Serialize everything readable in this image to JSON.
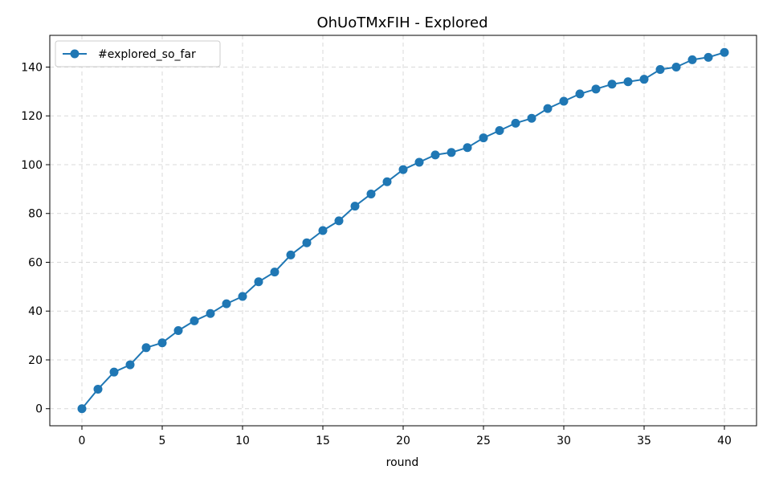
{
  "chart_data": {
    "type": "line",
    "title": "OhUoTMxFIH - Explored",
    "xlabel": "round",
    "ylabel": "",
    "xlim": [
      -2,
      42
    ],
    "ylim": [
      -7,
      153
    ],
    "x_ticks": [
      0,
      5,
      10,
      15,
      20,
      25,
      30,
      35,
      40
    ],
    "y_ticks": [
      0,
      20,
      40,
      60,
      80,
      100,
      120,
      140
    ],
    "grid": true,
    "legend_position": "top-left",
    "series": [
      {
        "name": "#explored_so_far",
        "color": "#1f77b4",
        "marker": "circle",
        "x": [
          0,
          1,
          2,
          3,
          4,
          5,
          6,
          7,
          8,
          9,
          10,
          11,
          12,
          13,
          14,
          15,
          16,
          17,
          18,
          19,
          20,
          21,
          22,
          23,
          24,
          25,
          26,
          27,
          28,
          29,
          30,
          31,
          32,
          33,
          34,
          35,
          36,
          37,
          38,
          39,
          40
        ],
        "values": [
          0,
          8,
          15,
          18,
          25,
          27,
          32,
          36,
          39,
          43,
          46,
          52,
          56,
          63,
          68,
          73,
          77,
          83,
          88,
          93,
          98,
          101,
          104,
          105,
          107,
          111,
          114,
          117,
          119,
          123,
          126,
          129,
          131,
          133,
          134,
          135,
          139,
          140,
          143,
          144,
          146
        ]
      }
    ]
  }
}
